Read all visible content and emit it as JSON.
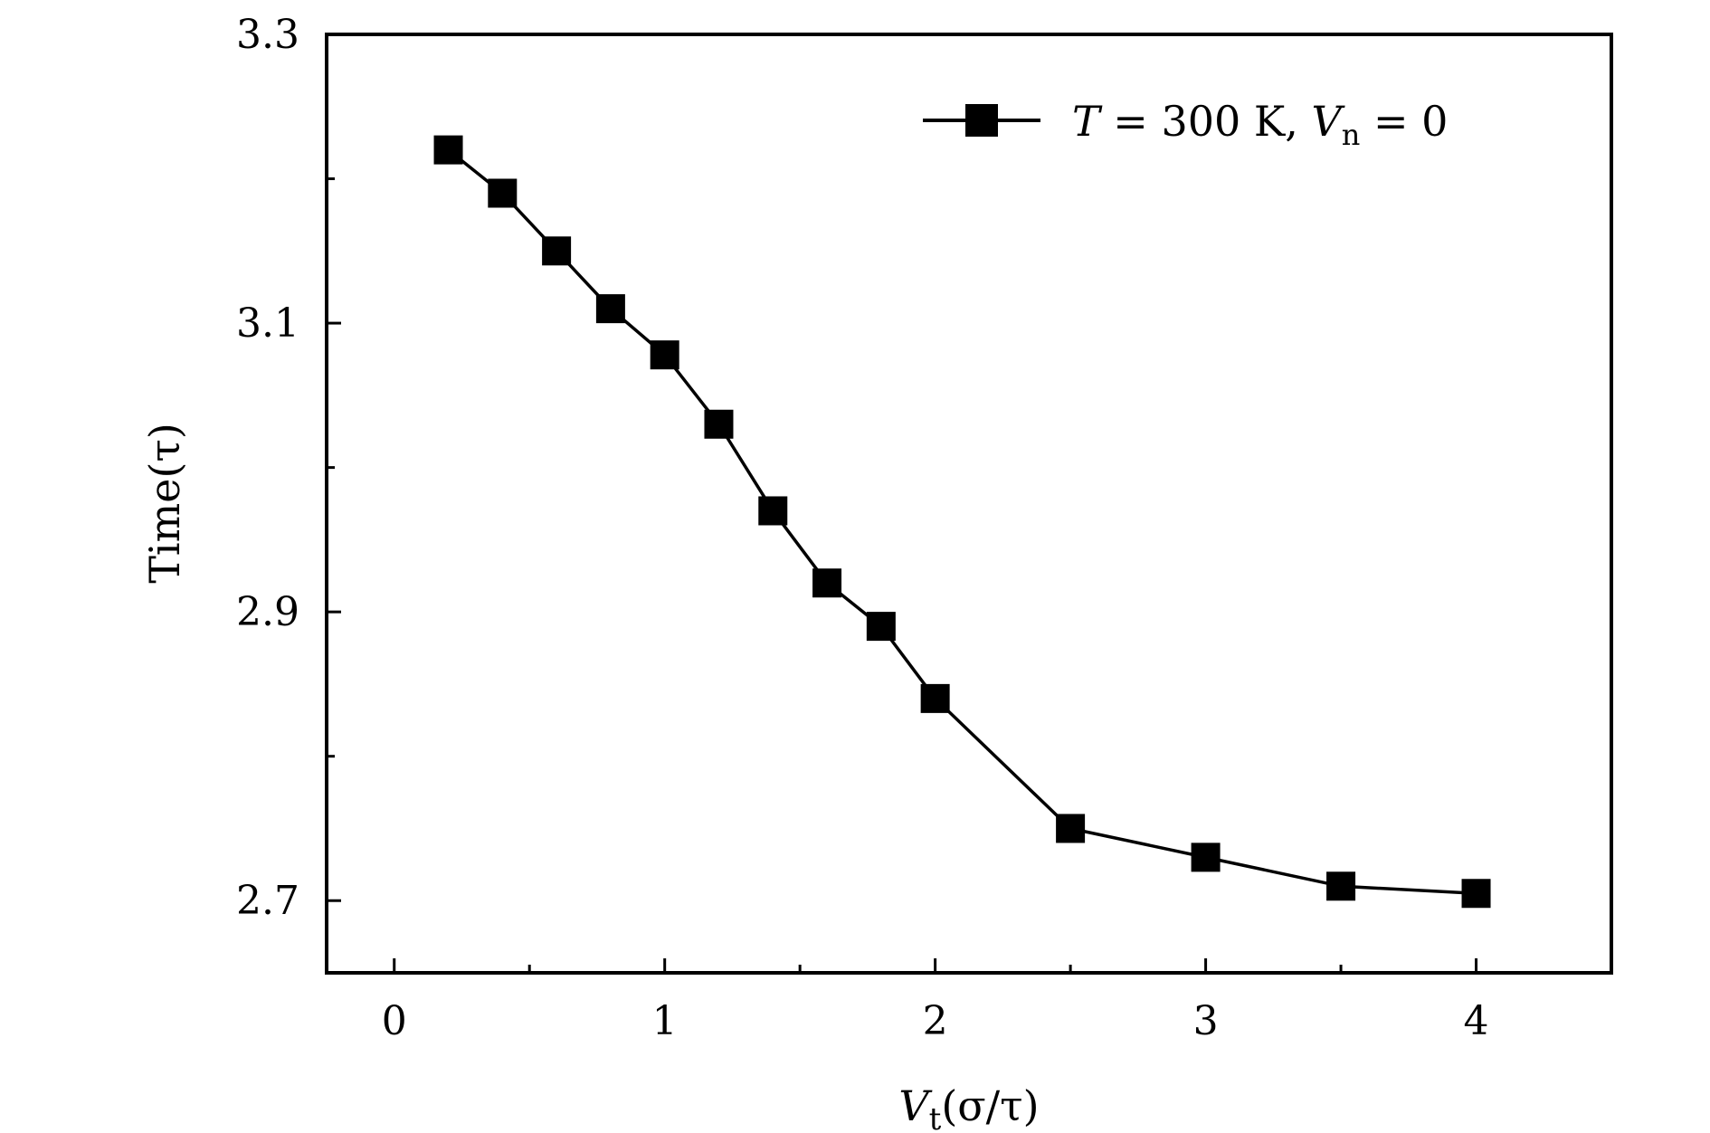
{
  "chart_data": {
    "type": "line",
    "title": "",
    "xlabel": {
      "main": "V",
      "sub": "t",
      "rest": "(σ/τ)"
    },
    "ylabel": "Time(τ)",
    "xlim": [
      -0.25,
      4.5
    ],
    "ylim": [
      2.65,
      3.3
    ],
    "x_major_ticks": [
      0,
      1,
      2,
      3,
      4
    ],
    "x_minor_ticks": [
      0.5,
      1.5,
      2.5,
      3.5
    ],
    "x_tick_labels": [
      "0",
      "1",
      "2",
      "3",
      "4"
    ],
    "y_major_ticks": [
      2.7,
      2.9,
      3.1,
      3.3
    ],
    "y_minor_ticks": [
      2.8,
      3.0,
      3.2
    ],
    "y_tick_labels": [
      "2.7",
      "2.9",
      "3.1",
      "3.3"
    ],
    "grid": false,
    "legend_position": "top-right",
    "series": [
      {
        "name": "T = 300 K, Vn = 0",
        "legend_parts": {
          "T": "T",
          "eq1": " = 300 K, ",
          "V": "V",
          "sub": "n",
          "eq2": " = 0"
        },
        "marker": "square",
        "color": "#000000",
        "x": [
          0.2,
          0.4,
          0.6,
          0.8,
          1.0,
          1.2,
          1.4,
          1.6,
          1.8,
          2.0,
          2.5,
          3.0,
          3.5,
          4.0
        ],
        "y": [
          3.22,
          3.19,
          3.15,
          3.11,
          3.078,
          3.03,
          2.97,
          2.92,
          2.89,
          2.84,
          2.75,
          2.73,
          2.71,
          2.705
        ]
      }
    ]
  }
}
